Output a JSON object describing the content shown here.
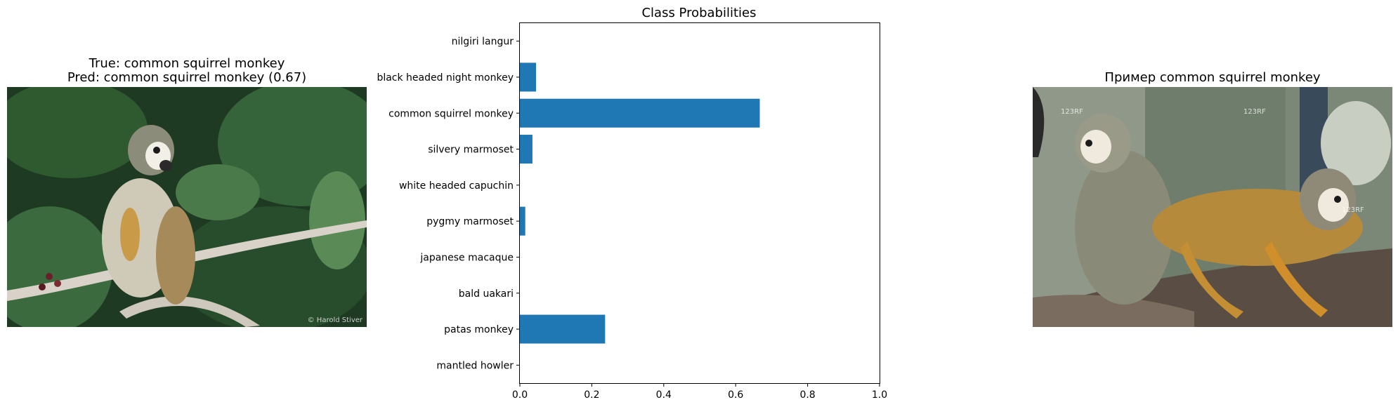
{
  "left_panel": {
    "title_line1": "True: common squirrel monkey",
    "title_line2": "Pred: common squirrel monkey (0.67)",
    "watermark": "© Harold Stiver"
  },
  "right_panel": {
    "title": "Пример common squirrel monkey",
    "watermark": "123RF"
  },
  "chart_data": {
    "type": "bar",
    "orientation": "horizontal",
    "title": "Class Probabilities",
    "xlabel": "",
    "ylabel": "",
    "xlim": [
      0,
      1.0
    ],
    "xticks": [
      "0.0",
      "0.2",
      "0.4",
      "0.6",
      "0.8",
      "1.0"
    ],
    "xtick_values": [
      0,
      0.2,
      0.4,
      0.6,
      0.8,
      1.0
    ],
    "categories": [
      "nilgiri langur",
      "black headed night monkey",
      "common squirrel monkey",
      "silvery marmoset",
      "white headed capuchin",
      "pygmy marmoset",
      "japanese macaque",
      "bald uakari",
      "patas monkey",
      "mantled howler"
    ],
    "values": [
      0.0,
      0.045,
      0.667,
      0.035,
      0.0,
      0.015,
      0.0,
      0.0,
      0.237,
      0.0
    ],
    "bar_color": "#1f77b4",
    "grid": false
  }
}
